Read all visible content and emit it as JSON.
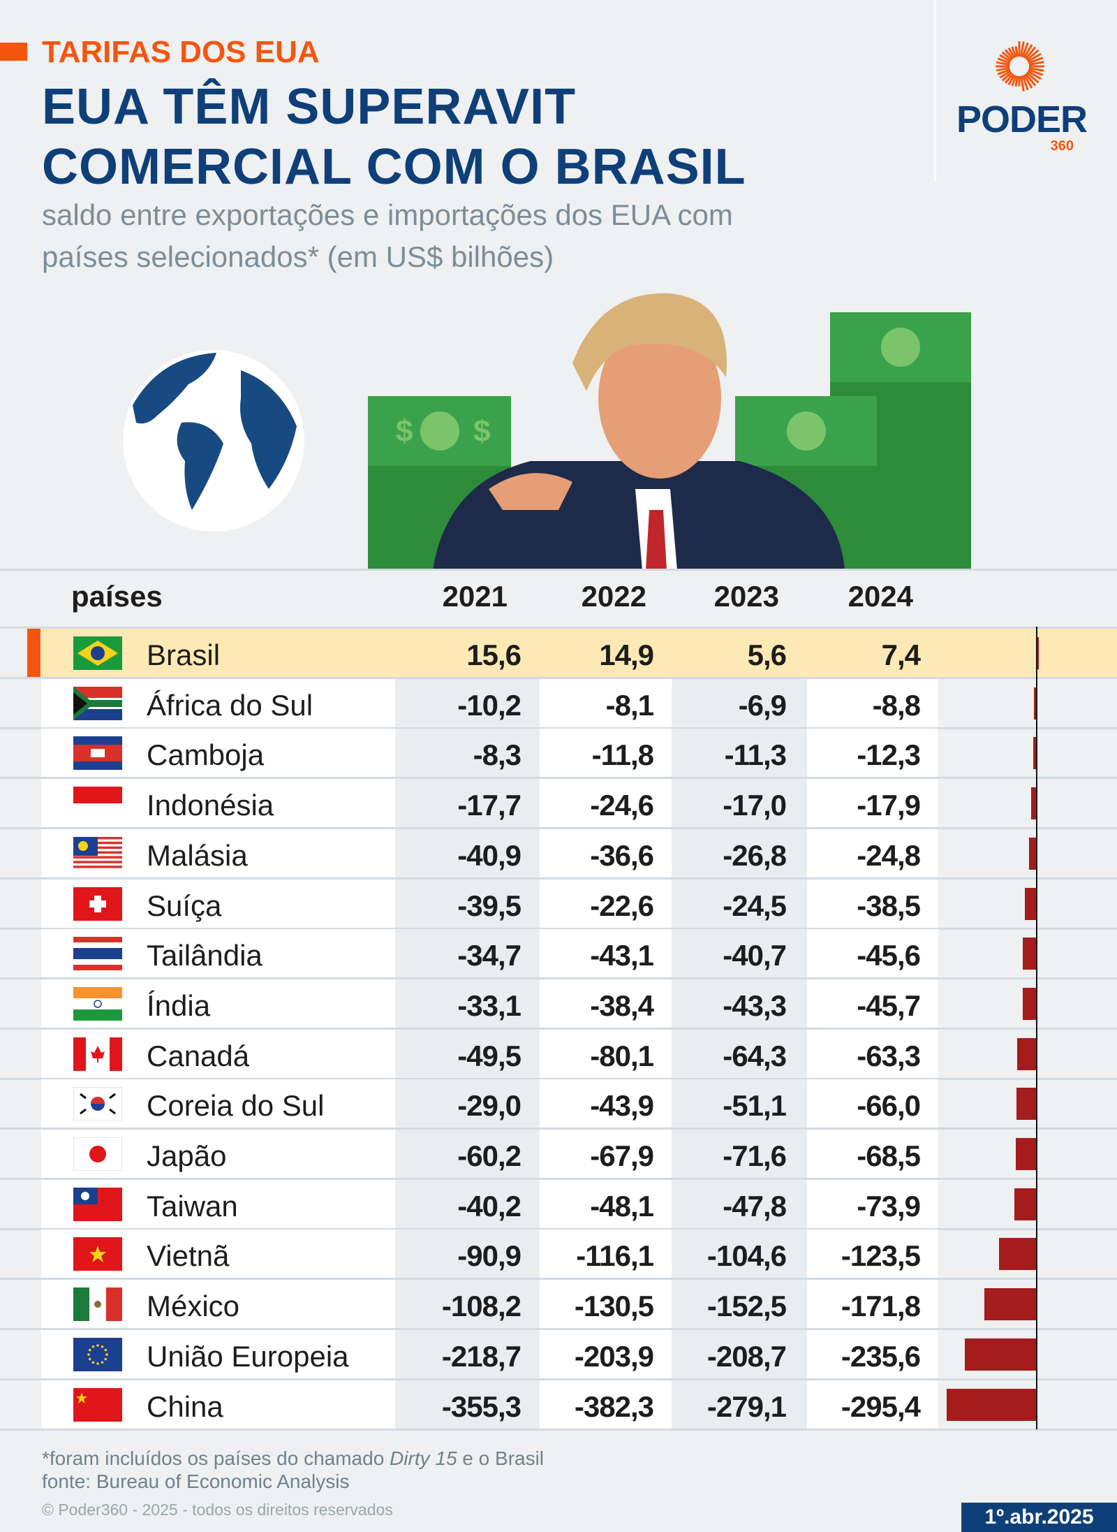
{
  "header": {
    "kicker": "TARIFAS DOS EUA",
    "title_line1": "EUA TÊM SUPERAVIT",
    "title_line2": "COMERCIAL COM O BRASIL",
    "subtitle_line1": "saldo entre exportações e importações dos EUA com",
    "subtitle_line2": "países selecionados* (em US$ bilhões)"
  },
  "logo": {
    "word": "PODER",
    "number": "360"
  },
  "colors": {
    "accent": "#f2560f",
    "brand": "#0f3f78",
    "bar": "#a51c1c",
    "highlight": "#fde9b5"
  },
  "chart_data": {
    "type": "table",
    "title": "EUA TÊM SUPERAVIT COMERCIAL COM O BRASIL",
    "unit": "US$ bilhões",
    "columns": [
      "países",
      "2021",
      "2022",
      "2023",
      "2024"
    ],
    "bar_series": "2024",
    "rows": [
      {
        "country": "Brasil",
        "flag": "br",
        "values": [
          "15,6",
          "14,9",
          "5,6",
          "7,4"
        ],
        "v2024": 7.4,
        "highlight": true
      },
      {
        "country": "África do Sul",
        "flag": "za",
        "values": [
          "-10,2",
          "-8,1",
          "-6,9",
          "-8,8"
        ],
        "v2024": -8.8
      },
      {
        "country": "Camboja",
        "flag": "kh",
        "values": [
          "-8,3",
          "-11,8",
          "-11,3",
          "-12,3"
        ],
        "v2024": -12.3
      },
      {
        "country": "Indonésia",
        "flag": "id",
        "values": [
          "-17,7",
          "-24,6",
          "-17,0",
          "-17,9"
        ],
        "v2024": -17.9
      },
      {
        "country": "Malásia",
        "flag": "my",
        "values": [
          "-40,9",
          "-36,6",
          "-26,8",
          "-24,8"
        ],
        "v2024": -24.8
      },
      {
        "country": "Suíça",
        "flag": "ch",
        "values": [
          "-39,5",
          "-22,6",
          "-24,5",
          "-38,5"
        ],
        "v2024": -38.5
      },
      {
        "country": "Tailândia",
        "flag": "th",
        "values": [
          "-34,7",
          "-43,1",
          "-40,7",
          "-45,6"
        ],
        "v2024": -45.6
      },
      {
        "country": "Índia",
        "flag": "in",
        "values": [
          "-33,1",
          "-38,4",
          "-43,3",
          "-45,7"
        ],
        "v2024": -45.7
      },
      {
        "country": "Canadá",
        "flag": "ca",
        "values": [
          "-49,5",
          "-80,1",
          "-64,3",
          "-63,3"
        ],
        "v2024": -63.3
      },
      {
        "country": "Coreia do Sul",
        "flag": "kr",
        "values": [
          "-29,0",
          "-43,9",
          "-51,1",
          "-66,0"
        ],
        "v2024": -66.0
      },
      {
        "country": "Japão",
        "flag": "jp",
        "values": [
          "-60,2",
          "-67,9",
          "-71,6",
          "-68,5"
        ],
        "v2024": -68.5
      },
      {
        "country": "Taiwan",
        "flag": "tw",
        "values": [
          "-40,2",
          "-48,1",
          "-47,8",
          "-73,9"
        ],
        "v2024": -73.9
      },
      {
        "country": "Vietnã",
        "flag": "vn",
        "values": [
          "-90,9",
          "-116,1",
          "-104,6",
          "-123,5"
        ],
        "v2024": -123.5
      },
      {
        "country": "México",
        "flag": "mx",
        "values": [
          "-108,2",
          "-130,5",
          "-152,5",
          "-171,8"
        ],
        "v2024": -171.8
      },
      {
        "country": "União Europeia",
        "flag": "eu",
        "values": [
          "-218,7",
          "-203,9",
          "-208,7",
          "-235,6"
        ],
        "v2024": -235.6
      },
      {
        "country": "China",
        "flag": "cn",
        "values": [
          "-355,3",
          "-382,3",
          "-279,1",
          "-295,4"
        ],
        "v2024": -295.4
      }
    ]
  },
  "footer": {
    "note_prefix": "*foram incluídos os países do chamado ",
    "note_italic": "Dirty 15",
    "note_suffix": " e o Brasil",
    "source": "fonte: Bureau of Economic Analysis",
    "copyright": "© Poder360 - 2025 - todos os direitos reservados",
    "date": "1º.abr.2025"
  }
}
